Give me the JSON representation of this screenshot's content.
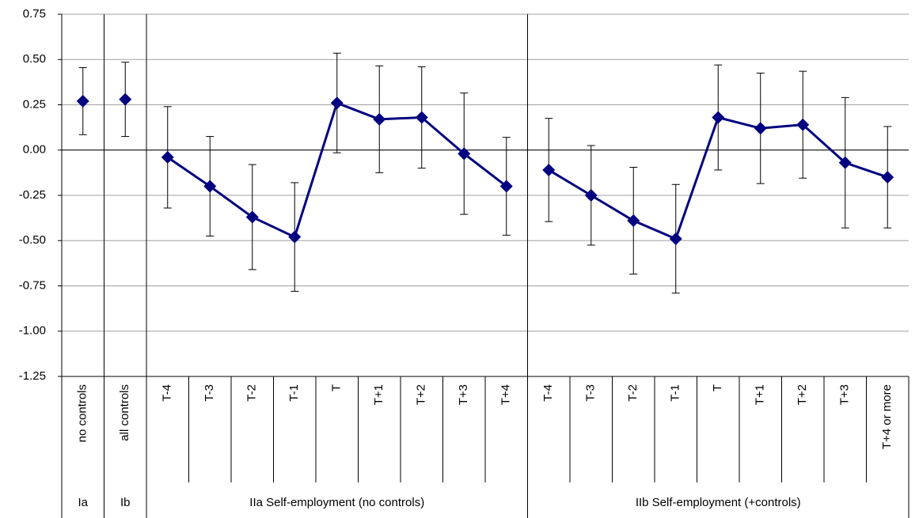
{
  "chart_data": {
    "type": "line",
    "color": "#000080",
    "grid": true,
    "ylim": [
      -1.25,
      0.75
    ],
    "yticks": [
      0.75,
      {
        "value": 0.5,
        "label": "0.50"
      },
      0.25,
      {
        "value": 0,
        "label": "0.00"
      },
      -0.25,
      {
        "value": -0.5,
        "label": "-0.50"
      },
      -0.75,
      {
        "value": -1,
        "label": "-1.00"
      },
      -1.25
    ],
    "groups": [
      {
        "label": "Ia",
        "categories": [
          "no controls"
        ],
        "values": [
          0.27
        ],
        "errors": [
          0.185
        ]
      },
      {
        "label": "Ib",
        "categories": [
          "all controls"
        ],
        "values": [
          0.28
        ],
        "errors": [
          0.205
        ]
      },
      {
        "label": "IIa Self-employment (no controls)",
        "categories": [
          "T-4",
          "T-3",
          "T-2",
          "T-1",
          "T",
          "T+1",
          "T+2",
          "T+3",
          "T+4"
        ],
        "values": [
          -0.04,
          -0.2,
          -0.37,
          -0.48,
          0.26,
          0.17,
          0.18,
          -0.02,
          -0.2
        ],
        "errors": [
          0.28,
          0.275,
          0.29,
          0.3,
          0.275,
          0.295,
          0.28,
          0.335,
          0.27
        ]
      },
      {
        "label": "IIb Self-employment (+controls)",
        "categories": [
          "T-4",
          "T-3",
          "T-2",
          "T-1",
          "T",
          "T+1",
          "T+2",
          "T+3",
          "T+4 or more"
        ],
        "values": [
          -0.11,
          -0.25,
          -0.39,
          -0.49,
          0.18,
          0.12,
          0.14,
          -0.07,
          -0.15
        ],
        "errors": [
          0.285,
          0.275,
          0.295,
          0.3,
          0.29,
          0.305,
          0.295,
          0.36,
          0.28
        ]
      }
    ]
  }
}
